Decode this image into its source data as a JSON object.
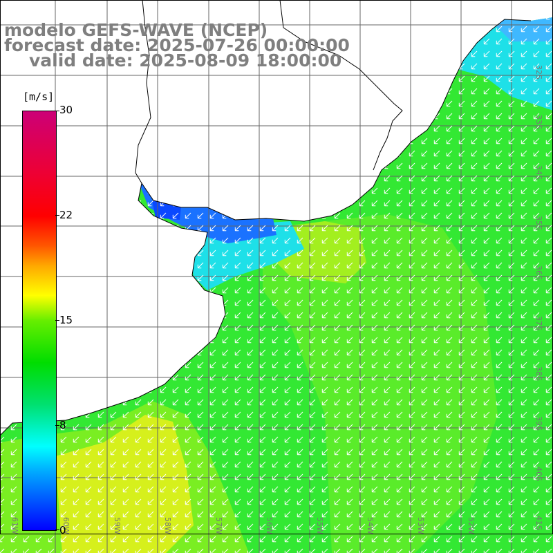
{
  "title": {
    "model": "modelo GEFS-WAVE (NCEP)",
    "forecast": "forecast date: 2025-07-26 00:00:00",
    "valid": "valid date: 2025-08-09 18:00:00"
  },
  "colorbar": {
    "unit": "[m/s]",
    "ticks": [
      "30",
      "22",
      "15",
      "8",
      "0"
    ],
    "range": [
      0,
      30
    ],
    "colors": [
      "#0000ff",
      "#00ffff",
      "#00dd00",
      "#ffff00",
      "#ff0000",
      "#cc0077"
    ]
  },
  "map": {
    "longitude_labels": [
      "61W",
      "60W",
      "59W",
      "58W",
      "57W",
      "56W",
      "55W",
      "54W",
      "53W",
      "52W"
    ],
    "latitude_labels": [
      "32S",
      "33S",
      "34S",
      "35S",
      "36S",
      "37S",
      "38S",
      "39S",
      "40S",
      "41S"
    ],
    "ocean_colors": {
      "green": "#33e833",
      "lime": "#7aee22",
      "yellow": "#d6f01c",
      "cyan": "#1ee0e8",
      "blue": "#1a72ff",
      "deep_blue": "#0a48ff"
    },
    "land_color": "#ffffff",
    "grid": true,
    "vector_field": "wind arrows, white, pointing southwest"
  }
}
